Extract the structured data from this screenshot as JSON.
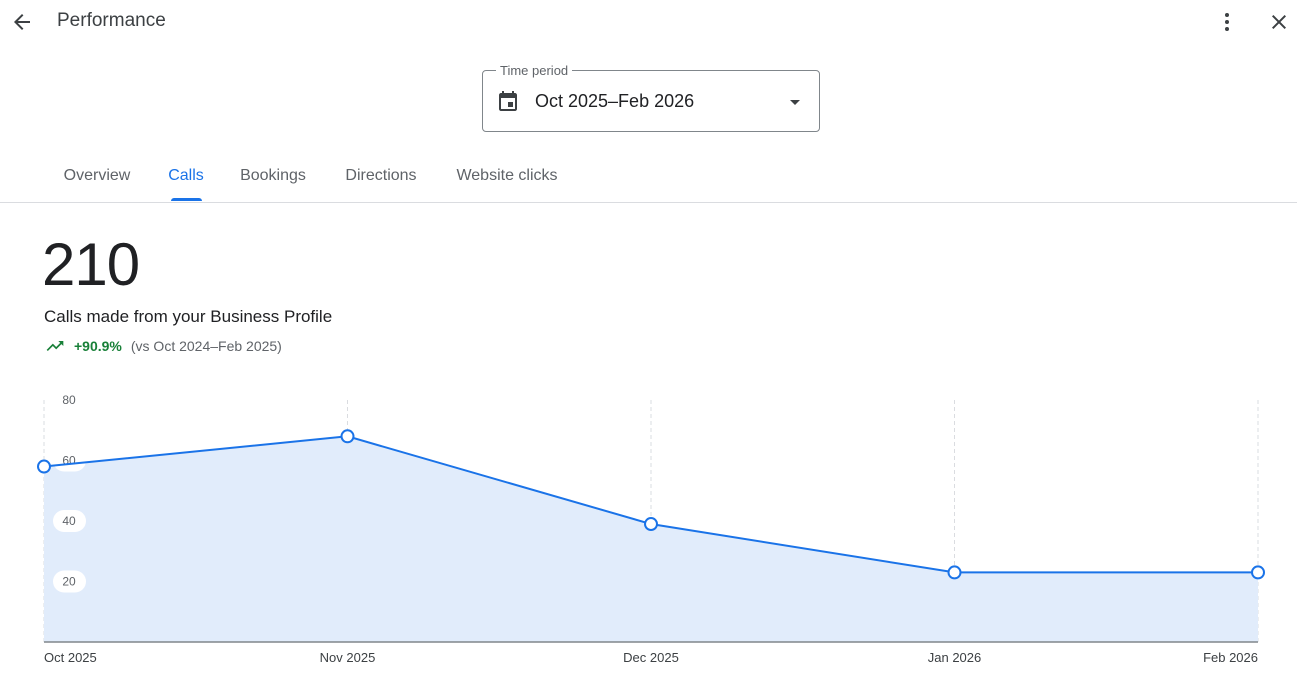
{
  "header": {
    "title": "Performance",
    "back_icon": "arrow-back-icon",
    "more_icon": "more-vert-icon",
    "close_icon": "close-icon"
  },
  "time_period": {
    "label": "Time period",
    "value": "Oct 2025–Feb 2026",
    "icon": "calendar-icon",
    "dropdown_icon": "caret-down-icon"
  },
  "tabs": [
    {
      "label": "Overview",
      "active": false
    },
    {
      "label": "Calls",
      "active": true
    },
    {
      "label": "Bookings",
      "active": false
    },
    {
      "label": "Directions",
      "active": false
    },
    {
      "label": "Website clicks",
      "active": false
    }
  ],
  "metric": {
    "total": "210",
    "caption": "Calls made from your Business Profile",
    "trend_icon": "trending-up-icon",
    "change": "+90.9%",
    "comparison": "(vs Oct 2024–Feb 2025)"
  },
  "colors": {
    "accent": "#1a73e8",
    "area_fill": "#e1ecfb",
    "positive": "#188038"
  },
  "chart_data": {
    "type": "area",
    "categories": [
      "Oct 2025",
      "Nov 2025",
      "Dec 2025",
      "Jan 2026",
      "Feb 2026"
    ],
    "values": [
      58,
      68,
      39,
      23,
      23
    ],
    "yticks": [
      20,
      40,
      60,
      80
    ],
    "ylim": [
      0,
      80
    ],
    "grid": "vertical dashed",
    "xlabel": "",
    "ylabel": ""
  }
}
